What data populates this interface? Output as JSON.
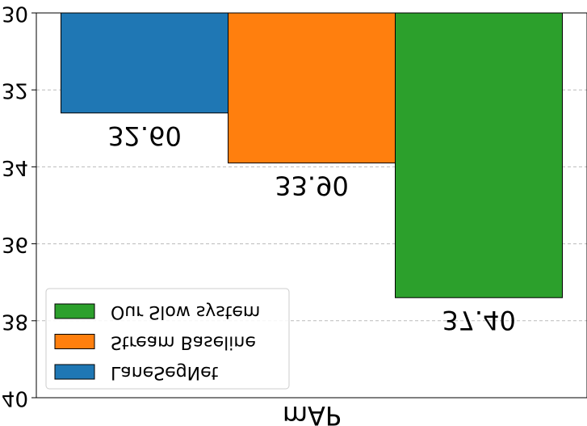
{
  "chart_data": {
    "type": "bar",
    "categories": [
      "mAP"
    ],
    "series": [
      {
        "name": "LaneSegNet",
        "color": "#1f77b4",
        "values": [
          32.6
        ],
        "value_labels": [
          "32.60"
        ]
      },
      {
        "name": "Stream Baseline",
        "color": "#ff7f0e",
        "values": [
          33.9
        ],
        "value_labels": [
          "33.90"
        ]
      },
      {
        "name": "Our Slow system",
        "color": "#2ca02c",
        "values": [
          37.4
        ],
        "value_labels": [
          "37.40"
        ]
      }
    ],
    "ylim": [
      30,
      40
    ],
    "yticks": [
      30,
      32,
      34,
      36,
      38,
      40
    ],
    "y_inverted": true,
    "grid": true,
    "legend": "lower left"
  }
}
